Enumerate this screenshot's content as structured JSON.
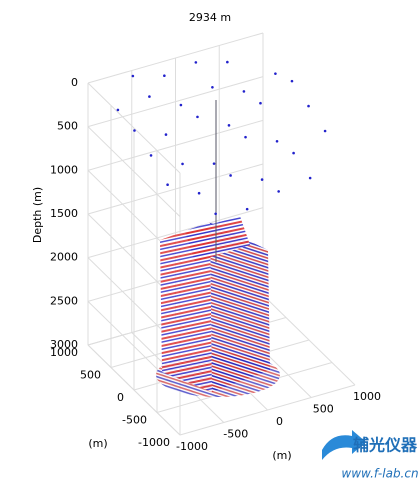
{
  "chart_data": {
    "type": "scatter3d",
    "title": "2934 m",
    "zlabel": "Depth (m)",
    "xlabel": "(m)",
    "ylabel": "(m)",
    "xlim": [
      -1000,
      1000
    ],
    "ylim": [
      -1000,
      1000
    ],
    "zlim": [
      0,
      3000
    ],
    "zreversed": true,
    "xticks": [
      -1000,
      -500,
      0,
      500,
      1000
    ],
    "yticks": [
      -1000,
      -500,
      0,
      500,
      1000
    ],
    "zticks": [
      0,
      500,
      1000,
      1500,
      2000,
      2500,
      3000
    ],
    "grid": true,
    "series": [
      {
        "color": "#2222cc",
        "x": [
          -540,
          -180,
          180,
          540,
          -900,
          -540,
          -180,
          180,
          540,
          900,
          -900,
          -540,
          -180,
          180,
          540,
          900,
          -900,
          -540,
          -180,
          180,
          540,
          900,
          -900,
          -540,
          -180,
          180,
          540,
          900,
          -540,
          -180,
          180,
          540
        ],
        "y": [
          -900,
          -900,
          -900,
          -900,
          -540,
          -540,
          -540,
          -540,
          -540,
          -540,
          -180,
          -180,
          -180,
          -180,
          -180,
          -180,
          180,
          180,
          180,
          180,
          180,
          180,
          540,
          540,
          540,
          540,
          540,
          540,
          900,
          900,
          900,
          900
        ],
        "z": [
          650,
          700,
          600,
          550,
          400,
          600,
          500,
          650,
          450,
          300,
          250,
          450,
          550,
          350,
          500,
          200,
          150,
          300,
          200,
          400,
          250,
          100,
          100,
          50,
          250,
          150,
          300,
          200,
          0,
          100,
          50,
          150
        ]
      }
    ],
    "watermark": {
      "brand": "辅光仪器",
      "url": "www.f-lab.cn"
    }
  }
}
